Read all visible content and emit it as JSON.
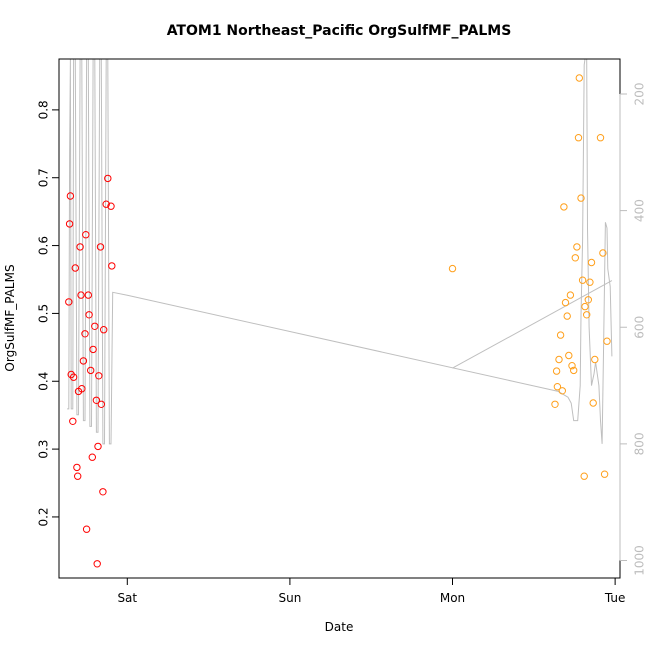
{
  "chart_data": {
    "type": "scatter",
    "title": "ATOM1 Northeast_Pacific OrgSulfMF_PALMS",
    "xlabel": "Date",
    "ylabel": "OrgSulfMF_PALMS",
    "x_units": "days",
    "xlim": [
      -0.42,
      3.03
    ],
    "ylim": [
      0.11,
      0.875
    ],
    "x_ticks": [
      {
        "value": 0,
        "label": "Sat"
      },
      {
        "value": 1,
        "label": "Sun"
      },
      {
        "value": 2,
        "label": "Mon"
      },
      {
        "value": 3,
        "label": "Tue"
      }
    ],
    "y_ticks": [
      0.2,
      0.3,
      0.4,
      0.5,
      0.6,
      0.7,
      0.8
    ],
    "right_axis": {
      "ylim": [
        1030,
        140
      ],
      "ticks": [
        200,
        400,
        600,
        800,
        1000
      ],
      "color": "#bdbdbd"
    },
    "grid": false,
    "series": [
      {
        "color": "#ff0000",
        "points": [
          [
            -0.36,
            0.517
          ],
          [
            -0.355,
            0.632
          ],
          [
            -0.35,
            0.673
          ],
          [
            -0.345,
            0.41
          ],
          [
            -0.335,
            0.341
          ],
          [
            -0.33,
            0.406
          ],
          [
            -0.32,
            0.567
          ],
          [
            -0.31,
            0.273
          ],
          [
            -0.305,
            0.26
          ],
          [
            -0.3,
            0.385
          ],
          [
            -0.29,
            0.598
          ],
          [
            -0.285,
            0.527
          ],
          [
            -0.28,
            0.389
          ],
          [
            -0.27,
            0.43
          ],
          [
            -0.26,
            0.47
          ],
          [
            -0.255,
            0.616
          ],
          [
            -0.25,
            0.182
          ],
          [
            -0.24,
            0.527
          ],
          [
            -0.235,
            0.498
          ],
          [
            -0.225,
            0.416
          ],
          [
            -0.215,
            0.288
          ],
          [
            -0.21,
            0.447
          ],
          [
            -0.2,
            0.481
          ],
          [
            -0.19,
            0.372
          ],
          [
            -0.185,
            0.131
          ],
          [
            -0.18,
            0.304
          ],
          [
            -0.175,
            0.408
          ],
          [
            -0.165,
            0.598
          ],
          [
            -0.16,
            0.366
          ],
          [
            -0.15,
            0.237
          ],
          [
            -0.145,
            0.476
          ],
          [
            -0.13,
            0.661
          ],
          [
            -0.12,
            0.699
          ],
          [
            -0.1,
            0.658
          ],
          [
            -0.095,
            0.57
          ]
        ]
      },
      {
        "color": "#ff9f1a",
        "points": [
          [
            2.0,
            0.566
          ],
          [
            2.63,
            0.366
          ],
          [
            2.64,
            0.415
          ],
          [
            2.645,
            0.392
          ],
          [
            2.655,
            0.432
          ],
          [
            2.665,
            0.468
          ],
          [
            2.675,
            0.386
          ],
          [
            2.685,
            0.657
          ],
          [
            2.695,
            0.516
          ],
          [
            2.705,
            0.496
          ],
          [
            2.715,
            0.438
          ],
          [
            2.725,
            0.527
          ],
          [
            2.735,
            0.423
          ],
          [
            2.745,
            0.416
          ],
          [
            2.755,
            0.582
          ],
          [
            2.765,
            0.598
          ],
          [
            2.775,
            0.759
          ],
          [
            2.78,
            0.847
          ],
          [
            2.79,
            0.67
          ],
          [
            2.8,
            0.549
          ],
          [
            2.81,
            0.26
          ],
          [
            2.815,
            0.51
          ],
          [
            2.825,
            0.498
          ],
          [
            2.835,
            0.52
          ],
          [
            2.845,
            0.546
          ],
          [
            2.855,
            0.575
          ],
          [
            2.865,
            0.368
          ],
          [
            2.875,
            0.432
          ],
          [
            2.91,
            0.759
          ],
          [
            2.925,
            0.589
          ],
          [
            2.935,
            0.263
          ],
          [
            2.95,
            0.459
          ]
        ]
      }
    ],
    "altitude_line": {
      "color": "#bfbfbf",
      "points": [
        [
          -0.37,
          740
        ],
        [
          -0.36,
          740
        ],
        [
          -0.355,
          300
        ],
        [
          -0.35,
          140
        ],
        [
          -0.345,
          740
        ],
        [
          -0.335,
          740
        ],
        [
          -0.33,
          140
        ],
        [
          -0.32,
          140
        ],
        [
          -0.31,
          750
        ],
        [
          -0.3,
          750
        ],
        [
          -0.29,
          140
        ],
        [
          -0.28,
          140
        ],
        [
          -0.27,
          760
        ],
        [
          -0.26,
          760
        ],
        [
          -0.25,
          140
        ],
        [
          -0.24,
          140
        ],
        [
          -0.23,
          770
        ],
        [
          -0.22,
          770
        ],
        [
          -0.21,
          140
        ],
        [
          -0.2,
          140
        ],
        [
          -0.19,
          780
        ],
        [
          -0.18,
          780
        ],
        [
          -0.17,
          140
        ],
        [
          -0.16,
          140
        ],
        [
          -0.15,
          800
        ],
        [
          -0.14,
          800
        ],
        [
          -0.13,
          140
        ],
        [
          -0.12,
          140
        ],
        [
          -0.11,
          800
        ],
        [
          -0.1,
          800
        ],
        [
          -0.09,
          540
        ],
        [
          0.0,
          545
        ],
        [
          2.65,
          710
        ],
        [
          2.71,
          720
        ],
        [
          2.73,
          730
        ],
        [
          2.745,
          760
        ],
        [
          2.77,
          760
        ],
        [
          2.785,
          700
        ],
        [
          2.79,
          580
        ],
        [
          2.8,
          450
        ],
        [
          2.81,
          150
        ],
        [
          2.815,
          140
        ],
        [
          2.825,
          140
        ],
        [
          2.83,
          430
        ],
        [
          2.84,
          600
        ],
        [
          2.855,
          700
        ],
        [
          2.87,
          680
        ],
        [
          2.88,
          660
        ],
        [
          2.9,
          700
        ],
        [
          2.91,
          760
        ],
        [
          2.92,
          800
        ],
        [
          2.93,
          620
        ],
        [
          2.94,
          420
        ],
        [
          2.95,
          430
        ],
        [
          2.955,
          500
        ],
        [
          2.97,
          530
        ],
        [
          2.98,
          650
        ]
      ]
    },
    "altitude_return": {
      "points": [
        [
          2.0,
          670
        ],
        [
          2.98,
          520
        ]
      ]
    }
  }
}
